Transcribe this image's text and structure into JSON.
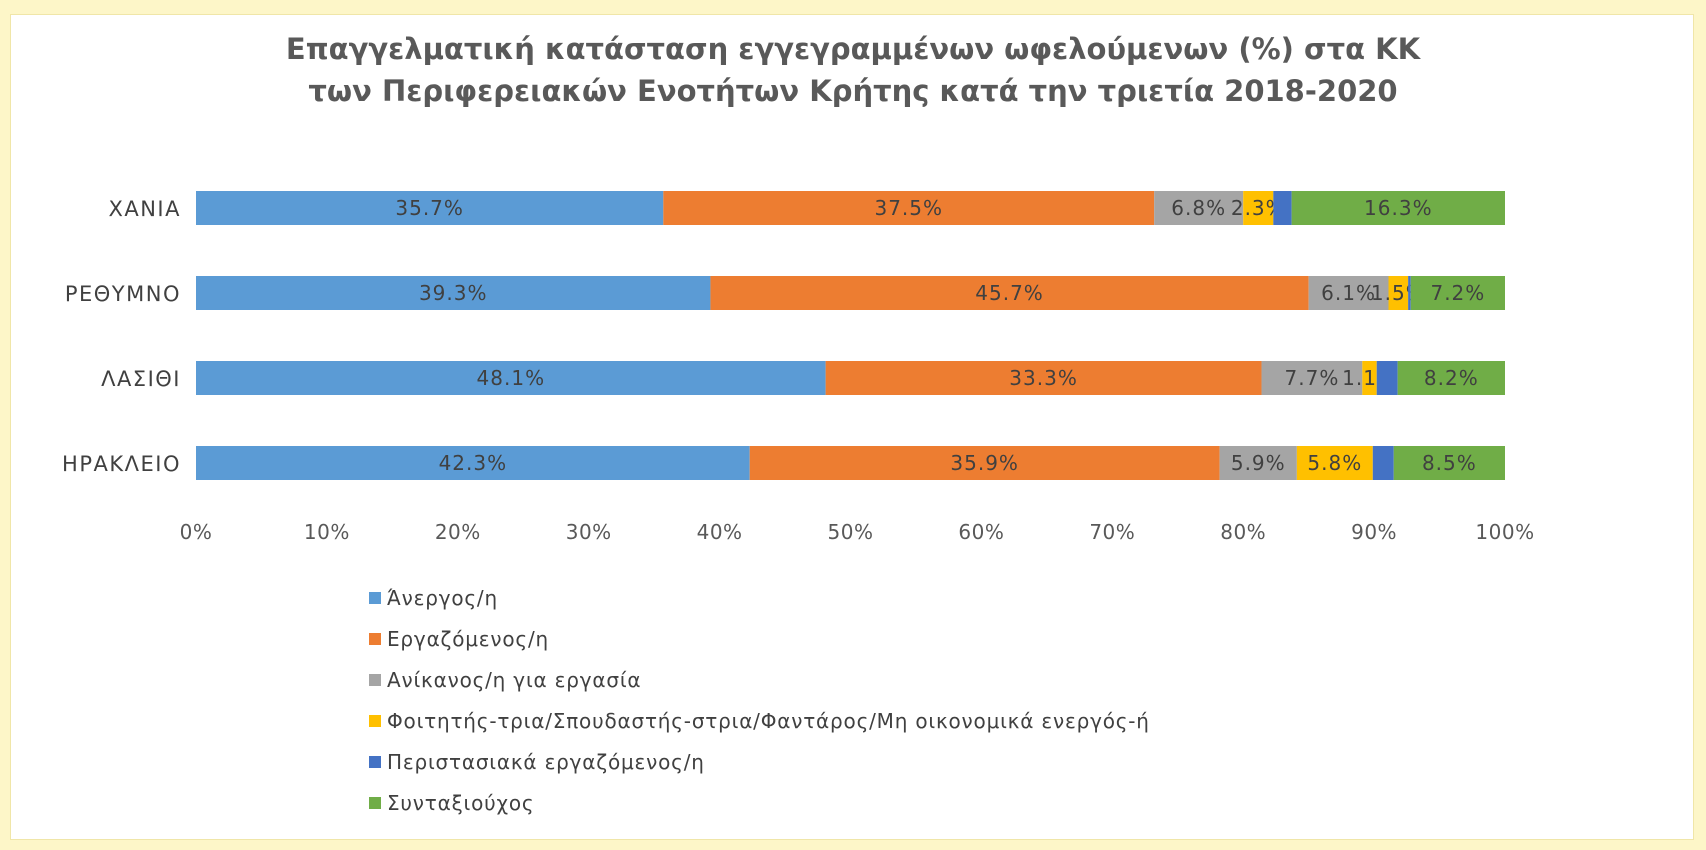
{
  "chart_data": {
    "type": "bar",
    "orientation": "horizontal",
    "stacked": "percent",
    "title": [
      "Επαγγελματική κατάσταση εγγεγραμμένων ωφελούμενων (%) στα ΚΚ",
      "των Περιφερειακών  Ενοτήτων Κρήτης κατά την τριετία 2018-2020"
    ],
    "categories": [
      "ΧΑΝΙΑ",
      "ΡΕΘΥΜΝΟ",
      "ΛΑΣΙΘΙ",
      "ΗΡΑΚΛΕΙΟ"
    ],
    "series": [
      {
        "name": "Άνεργος/η",
        "color": "#5b9bd5",
        "values": [
          35.7,
          39.3,
          48.1,
          42.3
        ],
        "labels": [
          "35.7%",
          "39.3%",
          "48.1%",
          "42.3%"
        ]
      },
      {
        "name": "Εργαζόμενος/η",
        "color": "#ed7d31",
        "values": [
          37.5,
          45.7,
          33.3,
          35.9
        ],
        "labels": [
          "37.5%",
          "45.7%",
          "33.3%",
          "35.9%"
        ]
      },
      {
        "name": "Ανίκανος/η για εργασία",
        "color": "#a5a5a5",
        "values": [
          6.8,
          6.1,
          7.7,
          5.9
        ],
        "labels": [
          "6.8%",
          "6.1%",
          "7.7%",
          "5.9%"
        ]
      },
      {
        "name": "Φοιτητής-τρια/Σπουδαστής-στρια/Φαντάρος/Μη οικονομικά ενεργός-ή",
        "color": "#ffc000",
        "values": [
          2.3,
          1.5,
          1.1,
          5.8
        ],
        "labels": [
          "2.3%",
          "1.5%",
          "1.1%",
          "5.8%"
        ]
      },
      {
        "name": "Περιστασιακά εργαζόμενος/η",
        "color": "#4472c4",
        "values": [
          1.4,
          0.2,
          1.6,
          1.6
        ],
        "labels": [
          "",
          "",
          "",
          ""
        ]
      },
      {
        "name": "Συνταξιούχος",
        "color": "#70ad47",
        "values": [
          16.3,
          7.2,
          8.2,
          8.5
        ],
        "labels": [
          "16.3%",
          "7.2%",
          "8.2%",
          "8.5%"
        ]
      }
    ],
    "xlim": [
      0,
      100
    ],
    "xticks": [
      "0%",
      "10%",
      "20%",
      "30%",
      "40%",
      "50%",
      "60%",
      "70%",
      "80%",
      "90%",
      "100%"
    ],
    "grid": false,
    "legend_position": "bottom-left"
  }
}
